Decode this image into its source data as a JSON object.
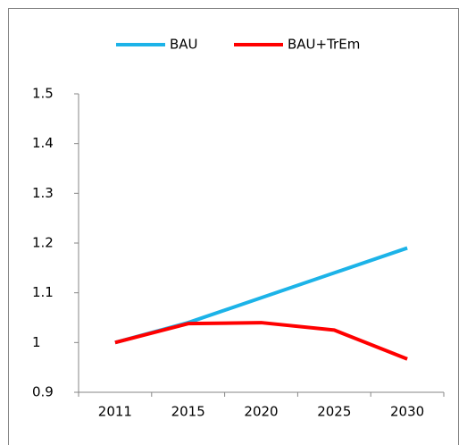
{
  "chart_data": {
    "type": "line",
    "categories": [
      "2011",
      "2015",
      "2020",
      "2025",
      "2030"
    ],
    "series": [
      {
        "name": "BAU",
        "color": "#1cb3e8",
        "values": [
          1.0,
          1.04,
          1.09,
          1.14,
          1.19
        ]
      },
      {
        "name": "BAU+TrEm",
        "color": "#ff0000",
        "values": [
          1.0,
          1.038,
          1.04,
          1.025,
          0.967
        ]
      }
    ],
    "ylim": [
      0.9,
      1.5
    ],
    "yticks": [
      0.9,
      1,
      1.1,
      1.2,
      1.3,
      1.4,
      1.5
    ],
    "grid": false,
    "legend": "top"
  }
}
